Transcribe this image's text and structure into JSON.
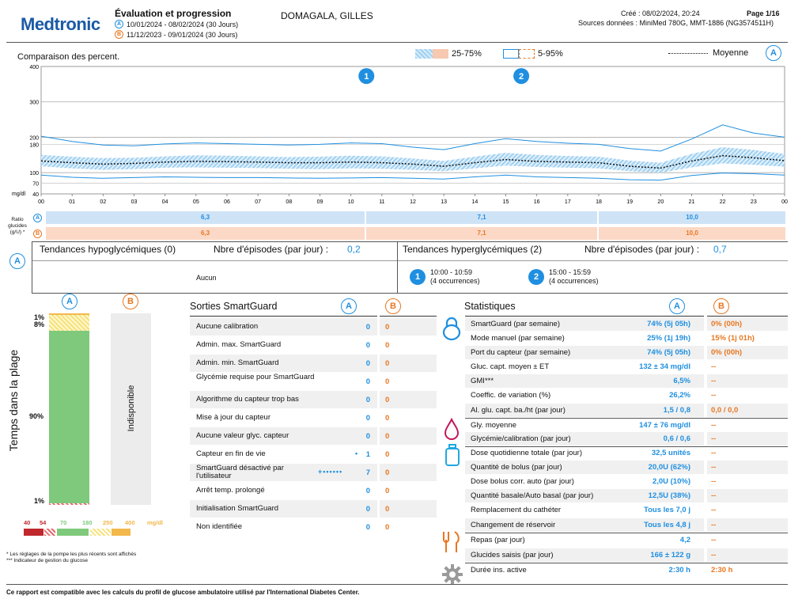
{
  "header": {
    "brand": "Medtronic",
    "title": "Évaluation et progression",
    "period_a": "10/01/2024 - 08/02/2024 (30 Jours)",
    "period_b": "11/12/2023 - 09/01/2024 (30 Jours)",
    "patient": "DOMAGALA, GILLES",
    "created": "Créé : 08/02/2024, 20:24",
    "page": "Page 1/16",
    "sources": "Sources données : MiniMed 780G, MMT-1886 (NG3574511H)",
    "badge_a": "A",
    "badge_b": "B"
  },
  "chart_data": {
    "type": "area",
    "title": "Comparaison des percent.",
    "legend": {
      "iqr": "25-75%",
      "range": "5-95%",
      "mean": "Moyenne",
      "badge": "A"
    },
    "ylabel": "mg/dl",
    "ylim": [
      40,
      400
    ],
    "yticks": [
      "400",
      "300",
      "200",
      "180",
      "100",
      "70",
      "40"
    ],
    "x": [
      "00",
      "01",
      "02",
      "03",
      "04",
      "05",
      "06",
      "07",
      "08",
      "09",
      "10",
      "11",
      "12",
      "13",
      "14",
      "15",
      "16",
      "17",
      "18",
      "19",
      "20",
      "21",
      "22",
      "23",
      "00"
    ],
    "series": [
      {
        "name": "5%",
        "values": [
          93,
          87,
          84,
          86,
          88,
          87,
          86,
          86,
          85,
          84,
          85,
          86,
          84,
          82,
          88,
          93,
          88,
          86,
          84,
          80,
          79,
          92,
          99,
          97,
          93
        ]
      },
      {
        "name": "25%",
        "values": [
          118,
          112,
          108,
          110,
          114,
          115,
          114,
          113,
          111,
          110,
          112,
          111,
          108,
          104,
          112,
          120,
          116,
          114,
          112,
          104,
          100,
          115,
          126,
          122,
          117
        ]
      },
      {
        "name": "Moyenne",
        "values": [
          133,
          128,
          124,
          126,
          130,
          132,
          131,
          130,
          128,
          128,
          130,
          128,
          124,
          118,
          128,
          137,
          132,
          130,
          128,
          118,
          113,
          133,
          148,
          142,
          134
        ]
      },
      {
        "name": "75%",
        "values": [
          150,
          145,
          141,
          142,
          146,
          149,
          148,
          146,
          144,
          145,
          148,
          146,
          140,
          133,
          145,
          156,
          150,
          147,
          145,
          134,
          128,
          153,
          172,
          164,
          153
        ]
      },
      {
        "name": "95%",
        "values": [
          203,
          188,
          178,
          176,
          181,
          184,
          182,
          180,
          178,
          180,
          184,
          182,
          172,
          165,
          182,
          196,
          188,
          183,
          180,
          168,
          161,
          195,
          235,
          212,
          200
        ]
      }
    ],
    "markers": [
      {
        "label": "1"
      },
      {
        "label": "2"
      }
    ]
  },
  "ratio": {
    "label1": "Ratio",
    "label2": "glucides",
    "label3": "(g/U) *",
    "a": [
      "6,3",
      "7,1",
      "10,0"
    ],
    "b": [
      "6,3",
      "7,1",
      "10,0"
    ]
  },
  "trends": {
    "hypo_title": "Tendances hypoglycémiques (0)",
    "hypo_episodes_label": "Nbre d'épisodes (par jour) :",
    "hypo_episodes_value": "0,2",
    "hypo_none": "Aucun",
    "hyper_title": "Tendances hyperglycémiques (2)",
    "hyper_episodes_label": "Nbre d'épisodes (par jour) :",
    "hyper_episodes_value": "0,7",
    "items": [
      {
        "num": "1",
        "time": "10:00 - 10:59",
        "occ": "(4 occurrences)"
      },
      {
        "num": "2",
        "time": "15:00 - 15:59",
        "occ": "(4 occurrences)"
      }
    ]
  },
  "tir": {
    "axis_label": "Temps dans la plage",
    "pct_top1": "1%",
    "pct_top2": "8%",
    "pct_mid": "90%",
    "pct_bot": "1%",
    "b_text": "Indisponible",
    "segments_pct": {
      "very_high": 1,
      "high": 8,
      "in_range": 90,
      "low": 1,
      "very_low": 0
    },
    "colors": {
      "very_low": "#c0282d",
      "low": "#e8676b",
      "in_range": "#7ec97b",
      "high": "#f6e27a",
      "very_high": "#f2b84b"
    },
    "scale": [
      "40",
      "54",
      "70",
      "180",
      "250",
      "400",
      "mg/dl"
    ]
  },
  "smartguard": {
    "title": "Sorties SmartGuard",
    "rows": [
      {
        "label": "Aucune calibration",
        "a": "0",
        "b": "0"
      },
      {
        "label": "Admin. max. SmartGuard",
        "a": "0",
        "b": "0"
      },
      {
        "label": "Admin. min. SmartGuard",
        "a": "0",
        "b": "0"
      },
      {
        "label": "Glycémie requise pour SmartGuard",
        "a": "0",
        "b": "0"
      },
      {
        "label": "Algorithme du capteur trop bas",
        "a": "0",
        "b": "0"
      },
      {
        "label": "Mise à jour du capteur",
        "a": "0",
        "b": "0"
      },
      {
        "label": "Aucune valeur glyc. capteur",
        "a": "0",
        "b": "0"
      },
      {
        "label": "Capteur en fin de vie",
        "a": "1",
        "b": "0"
      },
      {
        "label": "SmartGuard désactivé par l'utilisateur",
        "a": "7",
        "b": "0"
      },
      {
        "label": "Arrêt temp. prolongé",
        "a": "0",
        "b": "0"
      },
      {
        "label": "Initialisation SmartGuard",
        "a": "0",
        "b": "0"
      },
      {
        "label": "Non identifiée",
        "a": "0",
        "b": "0"
      }
    ]
  },
  "stats": {
    "title": "Statistiques",
    "rows": [
      {
        "label": "SmartGuard (par semaine)",
        "a": "74% (5j 05h)",
        "b": "0% (00h)"
      },
      {
        "label": "Mode manuel (par semaine)",
        "a": "25% (1j 19h)",
        "b": "15% (1j 01h)"
      },
      {
        "label": "Port du capteur (par semaine)",
        "a": "74% (5j 05h)",
        "b": "0% (00h)"
      },
      {
        "label": "Gluc. capt. moyen ± ET",
        "a": "132 ± 34 mg/dl",
        "b": "--"
      },
      {
        "label": "GMI***",
        "a": "6,5%",
        "b": "--"
      },
      {
        "label": "Coeffic. de variation (%)",
        "a": "26,2%",
        "b": "--"
      },
      {
        "label": "Al. glu. capt. ba./ht (par jour)",
        "a": "1,5 / 0,8",
        "b": "0,0 / 0,0"
      },
      {
        "label": "Gly. moyenne",
        "a": "147 ± 76 mg/dl",
        "b": "--"
      },
      {
        "label": "Glycémie/calibration (par jour)",
        "a": "0,6 / 0,6",
        "b": "--"
      },
      {
        "label": "Dose quotidienne totale (par jour)",
        "a": "32,5 unités",
        "b": "--"
      },
      {
        "label": "Quantité de bolus (par jour)",
        "a": "20,0U (62%)",
        "b": "--"
      },
      {
        "label": "Dose bolus corr. auto (par jour)",
        "a": "2,0U (10%)",
        "b": "--"
      },
      {
        "label": "Quantité basale/Auto basal (par jour)",
        "a": "12,5U (38%)",
        "b": "--"
      },
      {
        "label": "Remplacement du cathéter",
        "a": "Tous les 7,0 j",
        "b": "--"
      },
      {
        "label": "Changement de réservoir",
        "a": "Tous les 4,8 j",
        "b": "--"
      },
      {
        "label": "Repas (par jour)",
        "a": "4,2",
        "b": "--"
      },
      {
        "label": "Glucides saisis (par jour)",
        "a": "166 ± 122 g",
        "b": "--"
      },
      {
        "label": "Durée ins. active",
        "a": "2:30 h",
        "b": "2:30 h"
      }
    ]
  },
  "footnotes": {
    "note1": "* Les réglages de la pompe les plus récents sont affichés",
    "note2": "*** Indicateur de gestion du glucose",
    "footer": "Ce rapport est compatible avec les calculs du profil de glucose ambulatoire utilisé par l'International Diabetes Center."
  }
}
